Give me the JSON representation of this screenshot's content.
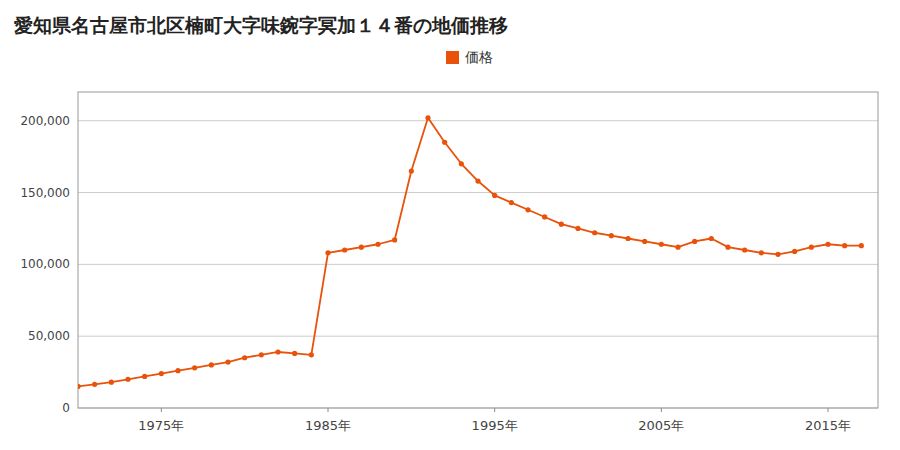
{
  "chart_data": {
    "type": "line",
    "title": "愛知県名古屋市北区楠町大字味鋺字冥加１４番の地価推移",
    "x": [
      1970,
      1971,
      1972,
      1973,
      1974,
      1975,
      1976,
      1977,
      1978,
      1979,
      1980,
      1981,
      1982,
      1983,
      1984,
      1985,
      1986,
      1987,
      1988,
      1989,
      1990,
      1991,
      1992,
      1993,
      1994,
      1995,
      1996,
      1997,
      1998,
      1999,
      2000,
      2001,
      2002,
      2003,
      2004,
      2005,
      2006,
      2007,
      2008,
      2009,
      2010,
      2011,
      2012,
      2013,
      2014,
      2015,
      2016,
      2017
    ],
    "series": [
      {
        "name": "価格",
        "color": "#e8520a",
        "marker": "circle",
        "values": [
          15000,
          16500,
          18000,
          20000,
          22000,
          24000,
          26000,
          28000,
          30000,
          32000,
          35000,
          37000,
          39000,
          38000,
          37000,
          108000,
          110000,
          112000,
          114000,
          117000,
          165000,
          202000,
          185000,
          170000,
          158000,
          148000,
          143000,
          138000,
          133000,
          128000,
          125000,
          122000,
          120000,
          118000,
          116000,
          114000,
          112000,
          116000,
          118000,
          112000,
          110000,
          108000,
          107000,
          109000,
          112000,
          114000,
          113000,
          113000
        ]
      }
    ],
    "xlim": [
      1970,
      2018
    ],
    "xticks": [
      {
        "value": 1975,
        "label": "1975年"
      },
      {
        "value": 1985,
        "label": "1985年"
      },
      {
        "value": 1995,
        "label": "1995年"
      },
      {
        "value": 2005,
        "label": "2005年"
      },
      {
        "value": 2015,
        "label": "2015年"
      }
    ],
    "ylim": [
      0,
      220000
    ],
    "yticks": [
      0,
      {
        "value": 50000,
        "label": "50,000"
      },
      {
        "value": 100000,
        "label": "100,000"
      },
      {
        "value": 150000,
        "label": "150,000"
      },
      {
        "value": 200000,
        "label": "200,000"
      }
    ],
    "grid": true,
    "legend": "top"
  }
}
